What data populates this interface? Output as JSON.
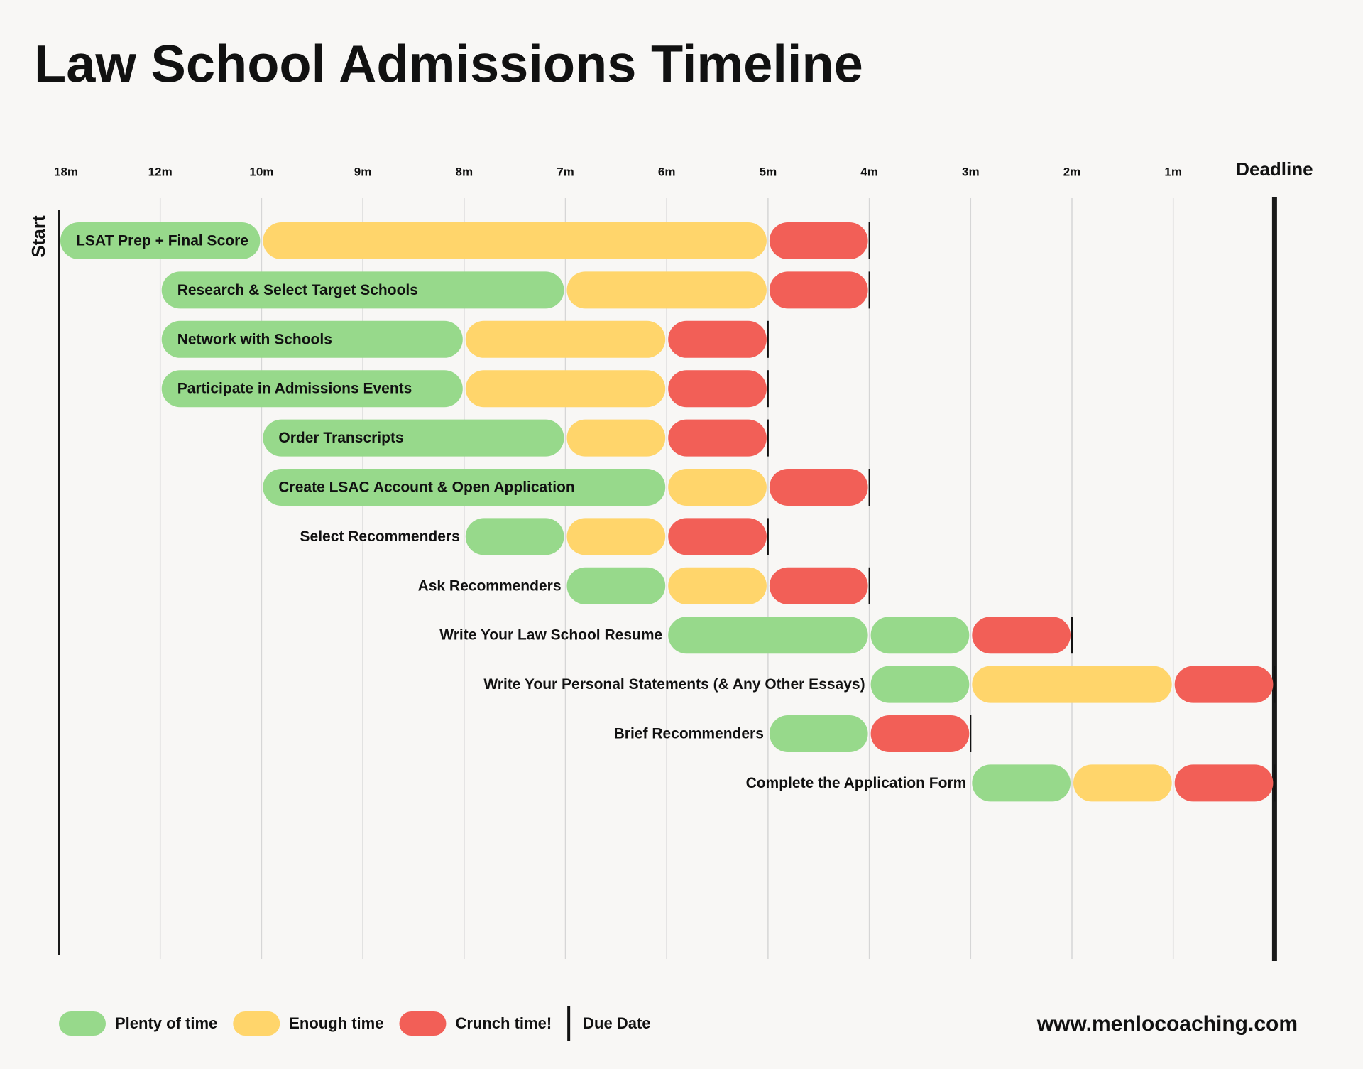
{
  "chart_data": {
    "type": "gantt",
    "title": "Law School Admissions Timeline",
    "start_label": "Start",
    "footer": "www.menlocoaching.com",
    "xticks": [
      {
        "value": 18,
        "label": "18m"
      },
      {
        "value": 12,
        "label": "12m"
      },
      {
        "value": 10,
        "label": "10m"
      },
      {
        "value": 9,
        "label": "9m"
      },
      {
        "value": 8,
        "label": "8m"
      },
      {
        "value": 7,
        "label": "7m"
      },
      {
        "value": 6,
        "label": "6m"
      },
      {
        "value": 5,
        "label": "5m"
      },
      {
        "value": 4,
        "label": "4m"
      },
      {
        "value": 3,
        "label": "3m"
      },
      {
        "value": 2,
        "label": "2m"
      },
      {
        "value": 1,
        "label": "1m"
      },
      {
        "value": 0,
        "label": "Deadline"
      }
    ],
    "xlim": [
      18,
      0
    ],
    "grid": true,
    "categories": [
      "LSAT Prep + Final Score",
      "Research & Select Target Schools",
      "Network with Schools",
      "Participate in Admissions Events",
      "Order Transcripts",
      "Create LSAC Account & Open Application",
      "Select Recommenders",
      "Ask Recommenders",
      "Write Your Law School Resume",
      "Write Your Personal Statements (& Any Other Essays)",
      "Brief Recommenders",
      "Complete the Application Form"
    ],
    "series": [
      {
        "name": "Plenty of time",
        "color": "#97d98b",
        "values": [
          [
            [
              18,
              10
            ]
          ],
          [
            [
              12,
              7
            ]
          ],
          [
            [
              12,
              8
            ]
          ],
          [
            [
              12,
              8
            ]
          ],
          [
            [
              10,
              7
            ]
          ],
          [
            [
              10,
              6
            ]
          ],
          [
            [
              8,
              7
            ]
          ],
          [
            [
              7,
              6
            ]
          ],
          [
            [
              6,
              4
            ],
            [
              4,
              3
            ]
          ],
          [
            [
              4,
              3
            ]
          ],
          [
            [
              5,
              4
            ]
          ],
          [
            [
              3,
              2
            ]
          ]
        ]
      },
      {
        "name": "Enough time",
        "color": "#ffd56b",
        "values": [
          [
            [
              10,
              5
            ]
          ],
          [
            [
              7,
              5
            ]
          ],
          [
            [
              8,
              6
            ]
          ],
          [
            [
              8,
              6
            ]
          ],
          [
            [
              7,
              6
            ]
          ],
          [
            [
              6,
              5
            ]
          ],
          [
            [
              7,
              6
            ]
          ],
          [
            [
              6,
              5
            ]
          ],
          [],
          [
            [
              3,
              1
            ]
          ],
          [],
          [
            [
              2,
              1
            ]
          ]
        ]
      },
      {
        "name": "Crunch time!",
        "color": "#f25f57",
        "values": [
          [
            [
              5,
              4
            ]
          ],
          [
            [
              5,
              4
            ]
          ],
          [
            [
              6,
              5
            ]
          ],
          [
            [
              6,
              5
            ]
          ],
          [
            [
              6,
              5
            ]
          ],
          [
            [
              5,
              4
            ]
          ],
          [
            [
              6,
              5
            ]
          ],
          [
            [
              5,
              4
            ]
          ],
          [
            [
              3,
              2
            ]
          ],
          [
            [
              1,
              0
            ]
          ],
          [
            [
              4,
              3
            ]
          ],
          [
            [
              1,
              0
            ]
          ]
        ]
      }
    ],
    "due_label": "Due Date",
    "due": [
      4,
      4,
      5,
      5,
      5,
      4,
      5,
      4,
      2,
      0,
      3,
      0
    ]
  }
}
